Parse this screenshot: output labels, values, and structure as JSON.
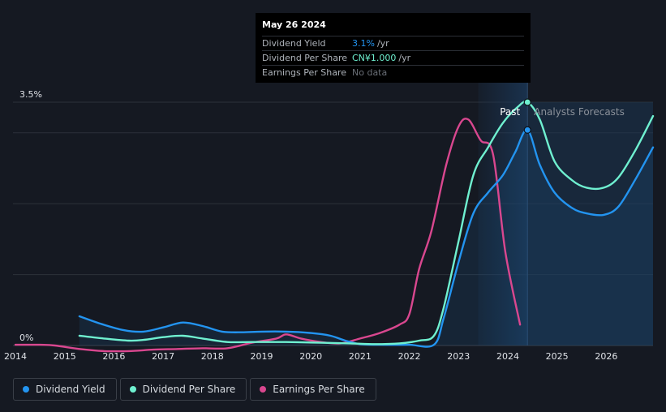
{
  "tooltip": {
    "date": "May 26 2024",
    "rows": [
      {
        "label": "Dividend Yield",
        "value": "3.1%",
        "unit": "/yr"
      },
      {
        "label": "Dividend Per Share",
        "value": "CN¥1.000",
        "unit": "/yr"
      },
      {
        "label": "Earnings Per Share",
        "value": "No data"
      }
    ]
  },
  "legend": [
    "Dividend Yield",
    "Dividend Per Share",
    "Earnings Per Share"
  ],
  "colors": {
    "background": "#151922",
    "dividend_yield": "#2394f0",
    "dividend_per_share": "#6ff0d0",
    "earnings_per_share": "#d9478f",
    "forecast_fill": "#1b3550"
  },
  "chart_data": {
    "type": "line",
    "x_ticks": [
      "2014",
      "2015",
      "2016",
      "2017",
      "2018",
      "2019",
      "2020",
      "2021",
      "2022",
      "2023",
      "2024",
      "2025",
      "2026"
    ],
    "xlim": [
      2013.95,
      2026.95
    ],
    "ylim": [
      0,
      3.5
    ],
    "y_tick_labels": [
      "0%",
      "3.5%"
    ],
    "y_ticks": [
      0,
      3.5
    ],
    "gridlines": [
      0,
      1.02,
      2.04,
      3.06,
      3.5
    ],
    "past_label": "Past",
    "forecast_label": "Analysts Forecasts",
    "past_shade_start": 2023.4,
    "divider_x": 2024.4,
    "series": [
      {
        "name": "Dividend Yield",
        "color": "#2394f0",
        "points": [
          [
            2015.3,
            0.42
          ],
          [
            2015.7,
            0.32
          ],
          [
            2016.2,
            0.22
          ],
          [
            2016.6,
            0.2
          ],
          [
            2017.0,
            0.26
          ],
          [
            2017.4,
            0.33
          ],
          [
            2017.8,
            0.28
          ],
          [
            2018.2,
            0.2
          ],
          [
            2018.6,
            0.19
          ],
          [
            2019.0,
            0.2
          ],
          [
            2019.5,
            0.2
          ],
          [
            2020.0,
            0.18
          ],
          [
            2020.4,
            0.14
          ],
          [
            2020.7,
            0.07
          ],
          [
            2021.0,
            0.02
          ],
          [
            2021.4,
            0.01
          ],
          [
            2022.0,
            0.01
          ],
          [
            2022.5,
            0.01
          ],
          [
            2022.7,
            0.4
          ],
          [
            2023.0,
            1.2
          ],
          [
            2023.3,
            1.9
          ],
          [
            2023.6,
            2.2
          ],
          [
            2023.9,
            2.45
          ],
          [
            2024.15,
            2.78
          ],
          [
            2024.4,
            3.1
          ],
          [
            2024.65,
            2.6
          ],
          [
            2024.95,
            2.2
          ],
          [
            2025.3,
            1.98
          ],
          [
            2025.6,
            1.9
          ],
          [
            2025.95,
            1.88
          ],
          [
            2026.25,
            2.0
          ],
          [
            2026.6,
            2.4
          ],
          [
            2026.95,
            2.85
          ]
        ]
      },
      {
        "name": "Dividend Per Share",
        "color": "#6ff0d0",
        "points": [
          [
            2015.3,
            0.14
          ],
          [
            2015.8,
            0.1
          ],
          [
            2016.3,
            0.07
          ],
          [
            2016.6,
            0.08
          ],
          [
            2017.0,
            0.12
          ],
          [
            2017.4,
            0.14
          ],
          [
            2017.8,
            0.1
          ],
          [
            2018.3,
            0.05
          ],
          [
            2018.8,
            0.05
          ],
          [
            2019.5,
            0.05
          ],
          [
            2020.2,
            0.04
          ],
          [
            2020.8,
            0.03
          ],
          [
            2021.3,
            0.02
          ],
          [
            2021.8,
            0.03
          ],
          [
            2022.2,
            0.07
          ],
          [
            2022.5,
            0.14
          ],
          [
            2022.7,
            0.55
          ],
          [
            2023.0,
            1.5
          ],
          [
            2023.3,
            2.45
          ],
          [
            2023.6,
            2.85
          ],
          [
            2023.9,
            3.2
          ],
          [
            2024.2,
            3.43
          ],
          [
            2024.4,
            3.5
          ],
          [
            2024.65,
            3.25
          ],
          [
            2024.95,
            2.65
          ],
          [
            2025.3,
            2.38
          ],
          [
            2025.6,
            2.27
          ],
          [
            2025.95,
            2.27
          ],
          [
            2026.25,
            2.42
          ],
          [
            2026.6,
            2.82
          ],
          [
            2026.95,
            3.3
          ]
        ]
      },
      {
        "name": "Earnings Per Share",
        "color": "#d9478f",
        "points": [
          [
            2014.0,
            0.01
          ],
          [
            2014.5,
            0.01
          ],
          [
            2014.8,
            0.0
          ],
          [
            2015.3,
            -0.05
          ],
          [
            2015.8,
            -0.08
          ],
          [
            2016.3,
            -0.08
          ],
          [
            2016.8,
            -0.06
          ],
          [
            2017.3,
            -0.05
          ],
          [
            2017.8,
            -0.04
          ],
          [
            2018.3,
            -0.04
          ],
          [
            2018.8,
            0.04
          ],
          [
            2019.3,
            0.1
          ],
          [
            2019.5,
            0.16
          ],
          [
            2019.8,
            0.1
          ],
          [
            2020.2,
            0.05
          ],
          [
            2020.6,
            0.03
          ],
          [
            2021.0,
            0.1
          ],
          [
            2021.4,
            0.18
          ],
          [
            2021.8,
            0.3
          ],
          [
            2022.0,
            0.45
          ],
          [
            2022.2,
            1.1
          ],
          [
            2022.45,
            1.65
          ],
          [
            2022.75,
            2.6
          ],
          [
            2023.0,
            3.15
          ],
          [
            2023.2,
            3.25
          ],
          [
            2023.45,
            2.95
          ],
          [
            2023.7,
            2.75
          ],
          [
            2023.95,
            1.35
          ],
          [
            2024.25,
            0.3
          ]
        ]
      }
    ],
    "markers": [
      {
        "series": "Dividend Per Share",
        "x": 2024.4,
        "y": 3.5
      },
      {
        "series": "Dividend Yield",
        "x": 2024.4,
        "y": 3.1
      }
    ]
  }
}
